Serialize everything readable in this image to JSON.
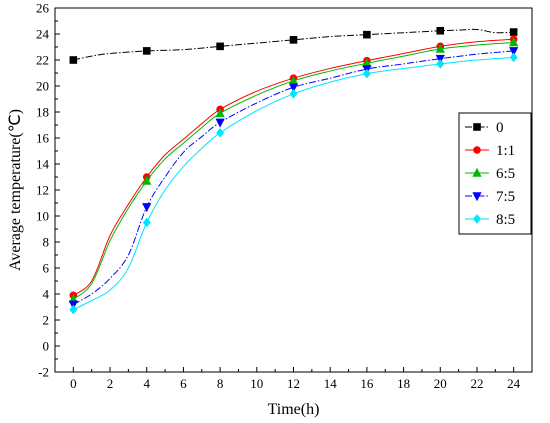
{
  "chart_data": {
    "type": "line",
    "xlabel": "Time(h)",
    "ylabel": "Average temperature(℃)",
    "xlim": [
      -1,
      25
    ],
    "ylim": [
      -2,
      26
    ],
    "xticks": [
      0,
      2,
      4,
      6,
      8,
      10,
      12,
      14,
      16,
      18,
      20,
      22,
      24
    ],
    "yticks": [
      -2,
      0,
      2,
      4,
      6,
      8,
      10,
      12,
      14,
      16,
      18,
      20,
      22,
      24,
      26
    ],
    "legend_position": "right",
    "marker_x": [
      0,
      4,
      8,
      12,
      16,
      20,
      24
    ],
    "series": [
      {
        "name": "0",
        "color": "#000000",
        "marker": "square",
        "dash": "dashdot",
        "x": [
          0,
          1,
          2,
          4,
          6,
          8,
          10,
          12,
          14,
          16,
          18,
          20,
          21,
          22,
          23,
          24
        ],
        "y": [
          22.0,
          22.3,
          22.5,
          22.7,
          22.8,
          23.05,
          23.3,
          23.55,
          23.8,
          23.95,
          24.1,
          24.25,
          24.3,
          24.35,
          24.1,
          24.15
        ]
      },
      {
        "name": "1:1",
        "color": "#ff0000",
        "marker": "circle",
        "dash": "solid",
        "x": [
          0,
          1,
          2,
          3,
          4,
          5,
          6,
          7,
          8,
          10,
          12,
          14,
          16,
          18,
          20,
          22,
          24
        ],
        "y": [
          3.9,
          5.0,
          8.5,
          10.9,
          13.0,
          14.7,
          15.9,
          17.1,
          18.2,
          19.6,
          20.6,
          21.35,
          21.95,
          22.5,
          23.05,
          23.4,
          23.6
        ]
      },
      {
        "name": "6:5",
        "color": "#00b800",
        "marker": "triangle-up",
        "dash": "solid",
        "x": [
          0,
          1,
          2,
          3,
          4,
          5,
          6,
          7,
          8,
          10,
          12,
          14,
          16,
          18,
          20,
          22,
          24
        ],
        "y": [
          3.6,
          4.8,
          8.1,
          10.6,
          12.7,
          14.4,
          15.6,
          16.8,
          17.9,
          19.3,
          20.4,
          21.15,
          21.75,
          22.3,
          22.85,
          23.15,
          23.35
        ]
      },
      {
        "name": "7:5",
        "color": "#0000ff",
        "marker": "triangle-down",
        "dash": "dashdot",
        "x": [
          0,
          1,
          2,
          3,
          4,
          5,
          6,
          7,
          8,
          10,
          12,
          14,
          16,
          18,
          20,
          22,
          24
        ],
        "y": [
          3.2,
          4.0,
          5.2,
          7.0,
          10.7,
          13.0,
          14.9,
          16.1,
          17.2,
          18.7,
          19.9,
          20.6,
          21.3,
          21.7,
          22.1,
          22.45,
          22.7
        ]
      },
      {
        "name": "8:5",
        "color": "#00e5ff",
        "marker": "diamond",
        "dash": "solid",
        "x": [
          0,
          1,
          2,
          3,
          4,
          5,
          6,
          7,
          8,
          10,
          12,
          14,
          16,
          18,
          20,
          22,
          24
        ],
        "y": [
          2.8,
          3.5,
          4.3,
          6.0,
          9.5,
          12.0,
          13.8,
          15.2,
          16.4,
          18.1,
          19.4,
          20.3,
          20.95,
          21.35,
          21.7,
          22.0,
          22.2
        ]
      }
    ]
  }
}
